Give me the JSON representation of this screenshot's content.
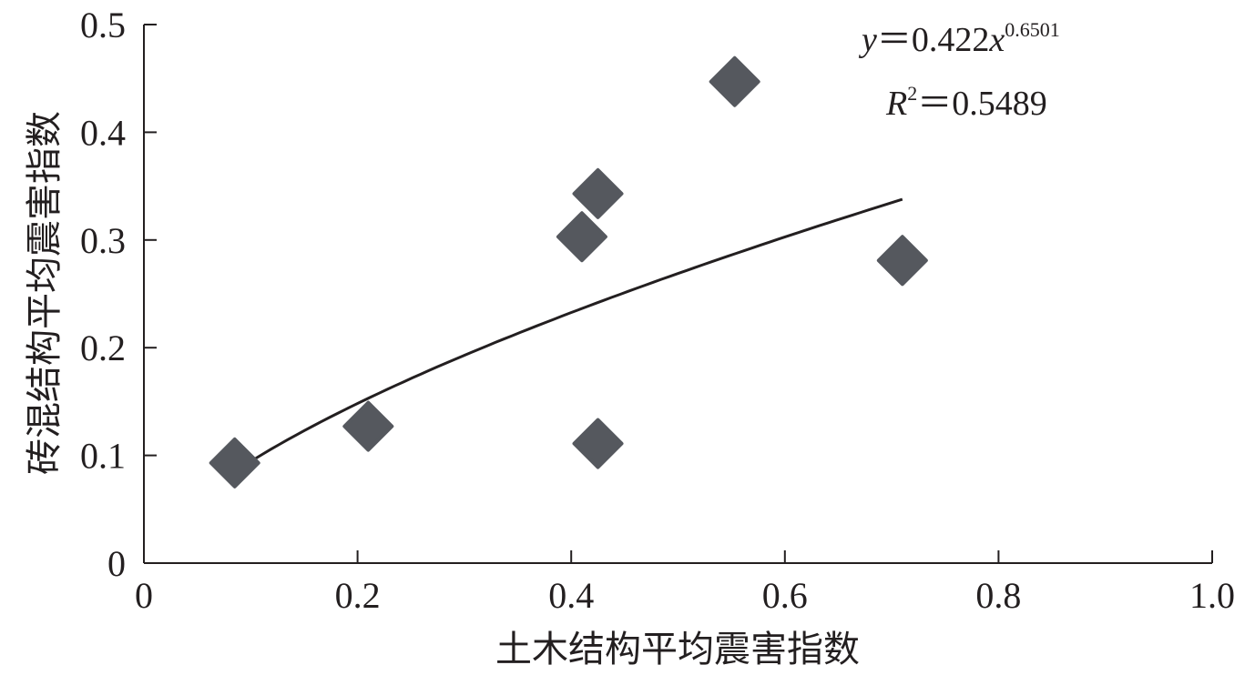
{
  "chart_data": {
    "type": "scatter",
    "xlabel": "土木结构平均震害指数",
    "ylabel": "砖混结构平均震害指数",
    "xlim": [
      0,
      1.0
    ],
    "ylim": [
      0,
      0.5
    ],
    "x_ticks": [
      "0",
      "0.2",
      "0.4",
      "0.6",
      "0.8",
      "1.0"
    ],
    "y_ticks": [
      "0",
      "0.1",
      "0.2",
      "0.3",
      "0.4",
      "0.5"
    ],
    "grid": false,
    "series": [
      {
        "marker": "diamond",
        "color": "#55585e",
        "points": [
          {
            "x": 0.085,
            "y": 0.093
          },
          {
            "x": 0.21,
            "y": 0.127
          },
          {
            "x": 0.41,
            "y": 0.303
          },
          {
            "x": 0.425,
            "y": 0.343
          },
          {
            "x": 0.425,
            "y": 0.111
          },
          {
            "x": 0.553,
            "y": 0.447
          },
          {
            "x": 0.71,
            "y": 0.281
          }
        ]
      }
    ],
    "trendline": {
      "type": "power",
      "coefficient": 0.422,
      "exponent": 0.6501,
      "x_range": [
        0.088,
        0.71
      ],
      "color": "#231f20"
    },
    "annotations": {
      "equation_y": "y",
      "equation_eq": "＝0.422",
      "equation_x": "x",
      "equation_exp": "0.6501",
      "r2_r": "R",
      "r2_sup": "2",
      "r2_value": "＝0.5489"
    }
  }
}
